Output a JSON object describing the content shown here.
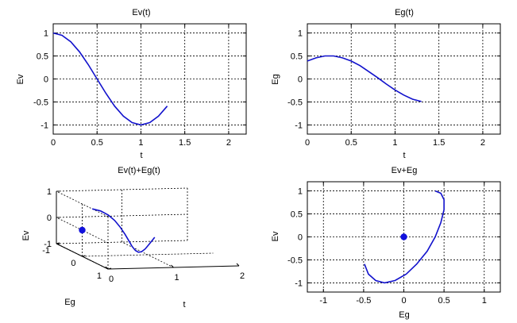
{
  "colors": {
    "series": "#1111cc",
    "marker": "#1111dd",
    "grid": "#000000"
  },
  "chart_data": [
    {
      "type": "line",
      "title": "Ev(t)",
      "xlabel": "t",
      "ylabel": "Ev",
      "xlim": [
        0,
        2.2
      ],
      "ylim": [
        -1.2,
        1.2
      ],
      "xticks": [
        "0",
        "0.5",
        "1",
        "1.5",
        "2"
      ],
      "yticks": [
        "1",
        "0.5",
        "0",
        "-0.5",
        "-1"
      ],
      "grid": true,
      "series": [
        {
          "x": [
            0,
            0.1,
            0.2,
            0.3,
            0.4,
            0.5,
            0.6,
            0.7,
            0.8,
            0.9,
            1.0,
            1.1,
            1.2,
            1.3
          ],
          "y": [
            1.0,
            0.95,
            0.81,
            0.59,
            0.31,
            0.0,
            -0.31,
            -0.59,
            -0.81,
            -0.95,
            -1.0,
            -0.95,
            -0.81,
            -0.59
          ]
        }
      ]
    },
    {
      "type": "line",
      "title": "Eg(t)",
      "xlabel": "t",
      "ylabel": "Eg",
      "xlim": [
        0,
        2.2
      ],
      "ylim": [
        -1.2,
        1.2
      ],
      "xticks": [
        "0",
        "0.5",
        "1",
        "1.5",
        "2"
      ],
      "yticks": [
        "1",
        "0.5",
        "0",
        "-0.5",
        "-1"
      ],
      "grid": true,
      "series": [
        {
          "x": [
            0,
            0.1,
            0.2,
            0.3,
            0.4,
            0.5,
            0.6,
            0.7,
            0.8,
            0.9,
            1.0,
            1.1,
            1.2,
            1.3
          ],
          "y": [
            0.39,
            0.46,
            0.5,
            0.5,
            0.46,
            0.39,
            0.29,
            0.16,
            0.03,
            -0.11,
            -0.24,
            -0.35,
            -0.44,
            -0.49
          ]
        }
      ]
    },
    {
      "type": "line",
      "title": "Ev(t)+Eg(t)",
      "xlabel": "t",
      "ylabel": "Eg",
      "zlabel": "Ev",
      "xlim": [
        0,
        2
      ],
      "ylim": [
        -1,
        1
      ],
      "zlim": [
        -1,
        1
      ],
      "xticks": [
        "0",
        "1",
        "2"
      ],
      "yticks": [
        "1",
        "0",
        "-1"
      ],
      "zticks": [
        "1",
        "0",
        "-1"
      ],
      "grid": true,
      "view": "3d",
      "series": [
        {
          "t": [
            0,
            0.1,
            0.2,
            0.3,
            0.4,
            0.5,
            0.6,
            0.7,
            0.8,
            0.9,
            1.0,
            1.1,
            1.2,
            1.3
          ],
          "eg": [
            0.39,
            0.46,
            0.5,
            0.5,
            0.46,
            0.39,
            0.29,
            0.16,
            0.03,
            -0.11,
            -0.24,
            -0.35,
            -0.44,
            -0.49
          ],
          "ev": [
            1.0,
            0.95,
            0.81,
            0.59,
            0.31,
            0.0,
            -0.31,
            -0.59,
            -0.81,
            -0.95,
            -1.0,
            -0.95,
            -0.81,
            -0.59
          ]
        }
      ],
      "marker": {
        "t": 0,
        "eg": 0,
        "ev": 0
      }
    },
    {
      "type": "line",
      "title": "Ev+Eg",
      "xlabel": "Eg",
      "ylabel": "Ev",
      "xlim": [
        -1.2,
        1.2
      ],
      "ylim": [
        -1.2,
        1.2
      ],
      "xticks": [
        "-1",
        "-0.5",
        "0",
        "0.5",
        "1"
      ],
      "yticks": [
        "1",
        "0.5",
        "0",
        "-0.5",
        "-1"
      ],
      "grid": true,
      "series": [
        {
          "x": [
            0.39,
            0.46,
            0.5,
            0.5,
            0.46,
            0.39,
            0.29,
            0.16,
            0.03,
            -0.11,
            -0.24,
            -0.35,
            -0.44,
            -0.49
          ],
          "y": [
            1.0,
            0.95,
            0.81,
            0.59,
            0.31,
            0.0,
            -0.31,
            -0.59,
            -0.81,
            -0.95,
            -1.0,
            -0.95,
            -0.81,
            -0.59
          ]
        }
      ],
      "marker": {
        "x": 0,
        "y": 0
      }
    }
  ]
}
